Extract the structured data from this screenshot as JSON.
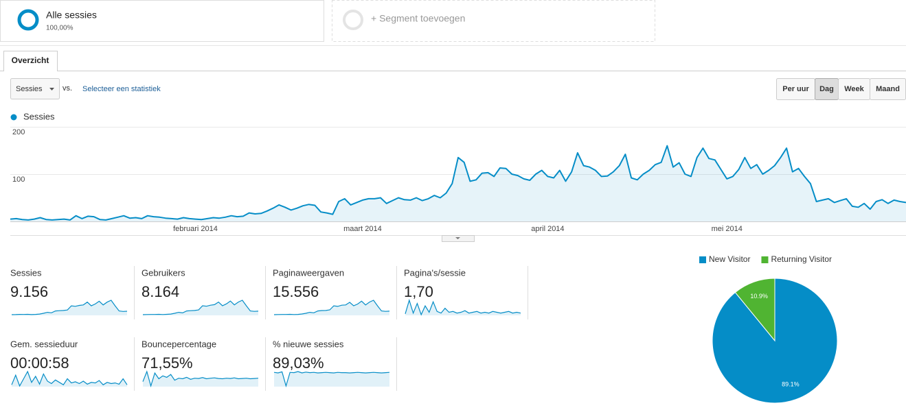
{
  "segments": [
    {
      "name": "Alle sessies",
      "share": "100,00%"
    },
    {
      "name": "+ Segment toevoegen"
    }
  ],
  "tabs": [
    "Overzicht"
  ],
  "controls": {
    "metric": "Sessies",
    "vs": "vs.",
    "compare": "Selecteer een statistiek",
    "granularity": [
      "Per uur",
      "Dag",
      "Week",
      "Maand"
    ],
    "selected": 1
  },
  "chart_data": [
    {
      "type": "line",
      "categories": [
        null,
        null,
        null,
        null,
        null,
        null,
        null,
        null,
        null,
        null,
        null,
        null,
        null,
        null,
        null,
        null,
        null,
        null,
        null,
        null,
        null,
        null,
        null,
        null,
        null,
        null,
        null,
        null,
        null,
        null,
        null,
        "februari 2014",
        null,
        null,
        null,
        null,
        null,
        null,
        null,
        null,
        null,
        null,
        null,
        null,
        null,
        null,
        null,
        null,
        null,
        null,
        null,
        null,
        null,
        null,
        null,
        null,
        null,
        null,
        null,
        "maart 2014",
        null,
        null,
        null,
        null,
        null,
        null,
        null,
        null,
        null,
        null,
        null,
        null,
        null,
        null,
        null,
        null,
        null,
        null,
        null,
        null,
        null,
        null,
        null,
        null,
        null,
        null,
        null,
        null,
        null,
        null,
        "april 2014",
        null,
        null,
        null,
        null,
        null,
        null,
        null,
        null,
        null,
        null,
        null,
        null,
        null,
        null,
        null,
        null,
        null,
        null,
        null,
        null,
        null,
        null,
        null,
        null,
        null,
        null,
        null,
        null,
        null,
        "mei 2014",
        null,
        null,
        null,
        null,
        null,
        null,
        null,
        null,
        null,
        null,
        null,
        null,
        null,
        null,
        null,
        null,
        null,
        null,
        null,
        null,
        null,
        null,
        null,
        null,
        null,
        null,
        null,
        null,
        null,
        null
      ],
      "series": [
        {
          "name": "Sessies",
          "color": "#058dc7",
          "values": [
            5,
            6,
            4,
            3,
            5,
            8,
            4,
            3,
            4,
            5,
            3,
            12,
            6,
            11,
            10,
            4,
            3,
            6,
            9,
            12,
            7,
            8,
            6,
            12,
            10,
            9,
            7,
            6,
            5,
            8,
            6,
            5,
            4,
            6,
            8,
            7,
            9,
            12,
            10,
            11,
            18,
            16,
            17,
            22,
            28,
            35,
            30,
            24,
            28,
            33,
            36,
            34,
            20,
            18,
            15,
            42,
            48,
            35,
            40,
            45,
            48,
            48,
            50,
            38,
            44,
            50,
            46,
            45,
            50,
            44,
            48,
            55,
            50,
            60,
            80,
            135,
            125,
            85,
            88,
            102,
            103,
            95,
            113,
            112,
            100,
            97,
            90,
            87,
            100,
            108,
            95,
            92,
            108,
            85,
            105,
            145,
            118,
            115,
            108,
            95,
            96,
            105,
            118,
            142,
            92,
            88,
            100,
            108,
            120,
            125,
            160,
            115,
            124,
            100,
            95,
            135,
            155,
            133,
            130,
            110,
            90,
            95,
            110,
            135,
            112,
            120,
            100,
            108,
            118,
            135,
            155,
            105,
            112,
            95,
            80,
            42,
            45,
            48,
            40,
            44,
            48,
            32,
            30,
            38,
            26,
            42,
            46,
            38,
            45,
            42,
            40
          ]
        }
      ],
      "ylim": [
        0,
        200
      ],
      "yticks": [
        100,
        200
      ],
      "grid": true
    },
    {
      "type": "pie",
      "categories": [
        "New Visitor",
        "Returning Visitor"
      ],
      "values": [
        89.1,
        10.9
      ],
      "value_labels": [
        "89.1%",
        "10.9%"
      ],
      "colors": [
        "#058dc7",
        "#50b432"
      ]
    }
  ],
  "metrics": [
    {
      "label": "Sessies",
      "value": "9.156",
      "sparkline": [
        5,
        6,
        8,
        7,
        9,
        6,
        8,
        12,
        20,
        30,
        25,
        45,
        48,
        50,
        55,
        100,
        95,
        105,
        110,
        140,
        100,
        120,
        150,
        110,
        140,
        160,
        100,
        45,
        40,
        42
      ]
    },
    {
      "label": "Gebruikers",
      "value": "8.164",
      "sparkline": [
        5,
        6,
        7,
        7,
        8,
        6,
        8,
        11,
        18,
        27,
        22,
        40,
        43,
        45,
        50,
        90,
        85,
        95,
        100,
        125,
        90,
        108,
        135,
        98,
        125,
        142,
        90,
        40,
        36,
        38
      ]
    },
    {
      "label": "Paginaweergaven",
      "value": "15.556",
      "sparkline": [
        8,
        10,
        12,
        11,
        14,
        10,
        13,
        20,
        32,
        48,
        40,
        72,
        78,
        80,
        90,
        160,
        150,
        170,
        175,
        220,
        160,
        190,
        240,
        175,
        225,
        255,
        160,
        72,
        64,
        68
      ]
    },
    {
      "label": "Pagina's/sessie",
      "value": "1,70",
      "sparkline": [
        1.5,
        3.2,
        1.6,
        2.8,
        1.4,
        2.5,
        1.7,
        3.0,
        1.8,
        1.6,
        2.2,
        1.7,
        1.8,
        1.6,
        1.7,
        1.9,
        1.6,
        1.7,
        1.8,
        1.6,
        1.7,
        1.6,
        1.8,
        1.7,
        1.6,
        1.7,
        1.8,
        1.6,
        1.7,
        1.6
      ]
    },
    {
      "label": "Gem. sessieduur",
      "value": "00:00:58",
      "sparkline": [
        40,
        120,
        30,
        90,
        150,
        60,
        110,
        45,
        130,
        70,
        50,
        80,
        60,
        40,
        90,
        55,
        65,
        50,
        70,
        45,
        60,
        55,
        75,
        40,
        60,
        50,
        55,
        45,
        90,
        40
      ]
    },
    {
      "label": "Bouncepercentage",
      "value": "71,55%",
      "sparkline": [
        60,
        95,
        45,
        90,
        70,
        80,
        75,
        85,
        65,
        72,
        70,
        75,
        68,
        72,
        71,
        74,
        70,
        72,
        73,
        71,
        70,
        72,
        71,
        73,
        70,
        71,
        72,
        70,
        71,
        72
      ]
    },
    {
      "label": "% nieuwe sessies",
      "value": "89,03%",
      "sparkline": [
        90,
        88,
        92,
        40,
        90,
        89,
        93,
        88,
        91,
        89,
        90,
        88,
        89,
        90,
        89,
        88,
        90,
        89,
        89,
        88,
        89,
        90,
        89,
        88,
        89,
        90,
        89,
        88,
        89,
        90
      ]
    }
  ]
}
